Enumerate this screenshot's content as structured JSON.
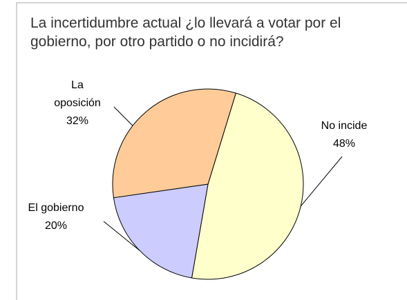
{
  "chart_data": {
    "type": "pie",
    "title": "La incertidumbre actual ¿lo llevará a votar por el gobierno, por otro partido o no incidirá?",
    "categories": [
      "No incide",
      "El gobierno",
      "La oposición"
    ],
    "values": [
      48,
      20,
      32
    ],
    "value_labels": [
      "48%",
      "20%",
      "32%"
    ],
    "colors": [
      "#ffffcc",
      "#ccccff",
      "#ffcc99"
    ]
  }
}
